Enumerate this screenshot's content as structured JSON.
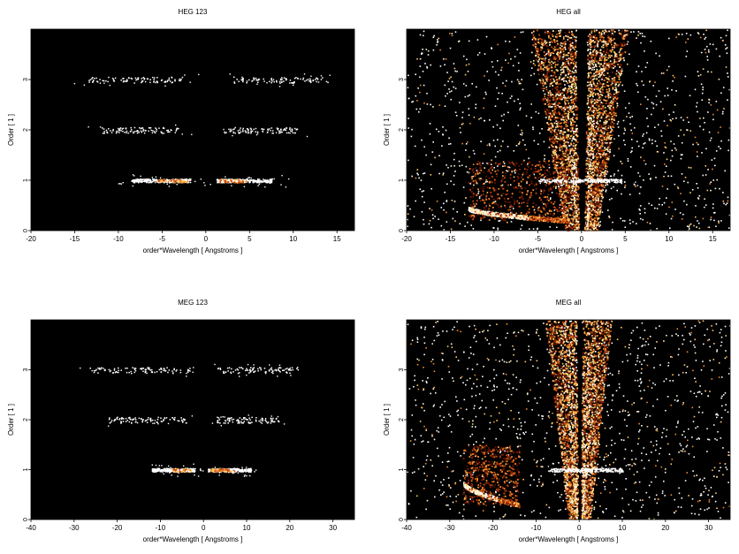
{
  "chart_data": [
    {
      "type": "heatmap",
      "title": "HEG 123",
      "xlabel": "order*Wavelength [ Angstroms ]",
      "ylabel": "Order [ 1 ]",
      "xlim": [
        -20,
        17
      ],
      "ylim": [
        0,
        4
      ],
      "xticks": [
        -20,
        -15,
        -10,
        -5,
        0,
        5,
        10,
        15
      ],
      "yticks": [
        0,
        1,
        2,
        3
      ],
      "background": "#000000",
      "colormap": [
        "#4a0d00",
        "#a02808",
        "#e0641c",
        "#ffc060",
        "#ffffff"
      ],
      "features": [
        {
          "label": "order 1 (negative side)",
          "order": 1,
          "x_range": [
            -8.5,
            -1.8
          ],
          "peak_range": [
            -5.5,
            -2.0
          ],
          "intensity": "high"
        },
        {
          "label": "order 1 (positive side)",
          "order": 1,
          "x_range": [
            1.2,
            7.5
          ],
          "peak_range": [
            1.5,
            4.5
          ],
          "intensity": "high"
        },
        {
          "label": "order 2 (negative side)",
          "order": 2,
          "x_range": [
            -12,
            -3
          ],
          "intensity": "low"
        },
        {
          "label": "order 2 (positive side)",
          "order": 2,
          "x_range": [
            2,
            10.5
          ],
          "intensity": "low"
        },
        {
          "label": "order 3 (negative side)",
          "order": 3,
          "x_range": [
            -13.5,
            -2.5
          ],
          "intensity": "low"
        },
        {
          "label": "order 3 (positive side)",
          "order": 3,
          "x_range": [
            3,
            14
          ],
          "intensity": "low"
        }
      ]
    },
    {
      "type": "heatmap",
      "title": "HEG all",
      "xlabel": "order*Wavelength [ Angstroms ]",
      "ylabel": "Order [ 1 ]",
      "xlim": [
        -20,
        17
      ],
      "ylim": [
        0,
        4
      ],
      "xticks": [
        -20,
        -15,
        -10,
        -5,
        0,
        5,
        10,
        15
      ],
      "yticks": [
        0,
        1,
        2,
        3
      ],
      "background": "#000000",
      "features": [
        {
          "label": "diffuse background",
          "x_range": [
            -20,
            17
          ],
          "order_range": [
            0,
            4
          ],
          "intensity": "medium"
        },
        {
          "label": "negative-arm wedge",
          "x_range": [
            -5.5,
            -0.5
          ],
          "order_range": [
            0,
            4
          ],
          "intensity": "medium"
        },
        {
          "label": "positive-arm wedge",
          "x_range": [
            0.5,
            5
          ],
          "order_range": [
            0,
            4
          ],
          "intensity": "medium"
        },
        {
          "label": "order 1 line",
          "order": 1,
          "x_range": [
            -5,
            5
          ],
          "intensity": "high"
        },
        {
          "label": "low-order arc",
          "x_range": [
            -13,
            -1.5
          ],
          "order_range": [
            0.2,
            0.45
          ],
          "intensity": "high"
        }
      ]
    },
    {
      "type": "heatmap",
      "title": "MEG 123",
      "xlabel": "order*Wavelength [ Angstroms ]",
      "ylabel": "Order [ 1 ]",
      "xlim": [
        -40,
        35
      ],
      "ylim": [
        0,
        4
      ],
      "xticks": [
        -40,
        -30,
        -20,
        -10,
        0,
        10,
        20,
        30
      ],
      "yticks": [
        0,
        1,
        2,
        3
      ],
      "background": "#000000",
      "features": [
        {
          "label": "order 1 (negative side)",
          "order": 1,
          "x_range": [
            -12,
            -2
          ],
          "peak_range": [
            -8,
            -3
          ],
          "intensity": "high"
        },
        {
          "label": "order 1 (positive side)",
          "order": 1,
          "x_range": [
            1,
            11
          ],
          "peak_range": [
            1.5,
            7
          ],
          "intensity": "high"
        },
        {
          "label": "order 2 (negative side)",
          "order": 2,
          "x_range": [
            -22,
            -4
          ],
          "intensity": "low"
        },
        {
          "label": "order 2 (positive side)",
          "order": 2,
          "x_range": [
            3,
            18
          ],
          "intensity": "low"
        },
        {
          "label": "order 3 (negative side)",
          "order": 3,
          "x_range": [
            -27,
            -3
          ],
          "intensity": "low"
        },
        {
          "label": "order 3 (positive side)",
          "order": 3,
          "x_range": [
            3,
            22
          ],
          "intensity": "low"
        }
      ]
    },
    {
      "type": "heatmap",
      "title": "MEG all",
      "xlabel": "order*Wavelength [ Angstroms ]",
      "ylabel": "Order [ 1 ]",
      "xlim": [
        -40,
        35
      ],
      "ylim": [
        0,
        4
      ],
      "xticks": [
        -40,
        -30,
        -20,
        -10,
        0,
        10,
        20,
        30
      ],
      "yticks": [
        0,
        1,
        2,
        3
      ],
      "background": "#000000",
      "features": [
        {
          "label": "diffuse background",
          "x_range": [
            -40,
            35
          ],
          "order_range": [
            0,
            4
          ],
          "intensity": "medium"
        },
        {
          "label": "negative-arm wedge",
          "x_range": [
            -7.5,
            -1
          ],
          "order_range": [
            0,
            4
          ],
          "intensity": "medium"
        },
        {
          "label": "positive-arm wedge",
          "x_range": [
            0.5,
            7
          ],
          "order_range": [
            0,
            4
          ],
          "intensity": "medium"
        },
        {
          "label": "order 1 line",
          "order": 1,
          "x_range": [
            -7,
            10
          ],
          "intensity": "high"
        },
        {
          "label": "low-order arc",
          "x_range": [
            -27,
            -14
          ],
          "order_range": [
            0.3,
            0.75
          ],
          "intensity": "high"
        }
      ]
    }
  ]
}
